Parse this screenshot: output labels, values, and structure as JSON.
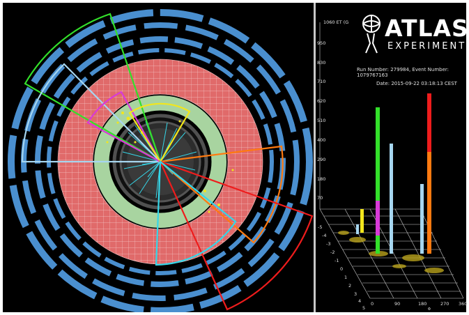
{
  "logo": {
    "title": "ATLAS",
    "subtitle": "EXPERIMENT"
  },
  "event": {
    "run_line": "Run Number: 279984, Event Number: 1079767163",
    "date_line": "Date: 2015-09-22 03:18:13 CEST"
  },
  "lego_plot": {
    "axis_label": "1060 ET (G",
    "y_ticks": [
      "950",
      "830",
      "710",
      "620",
      "510",
      "400",
      "290",
      "180",
      "70"
    ],
    "x_ticks": [
      "0",
      "90",
      "180",
      "270",
      "360"
    ],
    "phi_label": "Φ",
    "eta_ticks": [
      "-5",
      "-4",
      "-3",
      "-2",
      "-1",
      "0",
      "1",
      "2",
      "3",
      "4",
      "5"
    ]
  },
  "colors": {
    "background": "#000000",
    "muon_blue": "#4a8fcf",
    "calorimeter_red": "#e06a6a",
    "inner_green": "#a8d4a0",
    "track_cyan": "#35d6e8",
    "jet_green": "#33e02a",
    "jet_yellow": "#f2e61c",
    "jet_magenta": "#d83ad8",
    "jet_lightblue": "#a6d6f0",
    "jet_orange": "#ff7a10",
    "jet_red": "#ee1c1c"
  }
}
